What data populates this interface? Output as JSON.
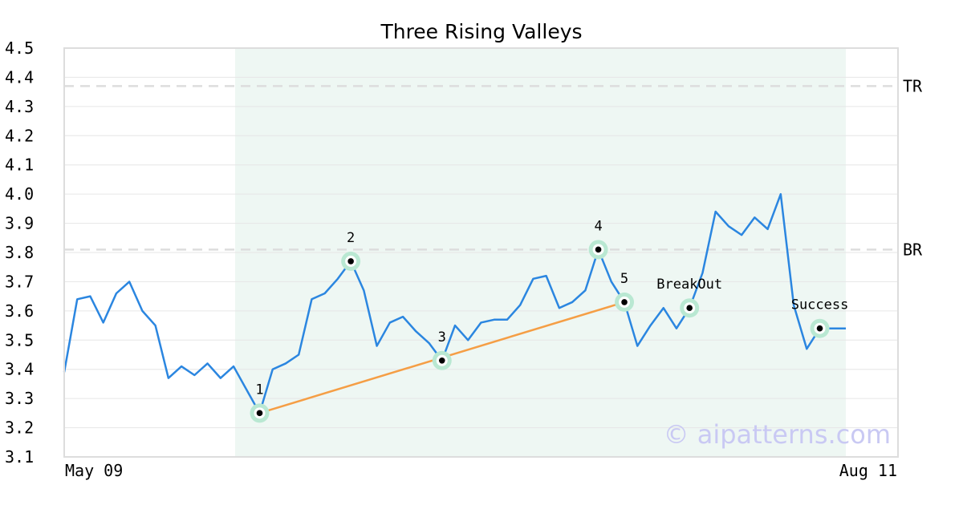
{
  "chart_data": {
    "type": "line",
    "title": "Three Rising Valleys",
    "xlabel": "",
    "ylabel": "",
    "ylim": [
      3.1,
      4.5
    ],
    "yticks": [
      "3.1",
      "3.2",
      "3.3",
      "3.4",
      "3.5",
      "3.6",
      "3.7",
      "3.8",
      "3.9",
      "4.0",
      "4.1",
      "4.2",
      "4.3",
      "4.4",
      "4.5"
    ],
    "x_labels": {
      "start": "May 09",
      "end": "Aug 11"
    },
    "grid": true,
    "legend": "none",
    "series": [
      {
        "values": [
          3.39,
          3.64,
          3.65,
          3.56,
          3.66,
          3.7,
          3.6,
          3.55,
          3.37,
          3.41,
          3.38,
          3.42,
          3.37,
          3.41,
          3.33,
          3.25,
          3.4,
          3.42,
          3.45,
          3.64,
          3.66,
          3.71,
          3.77,
          3.67,
          3.48,
          3.56,
          3.58,
          3.53,
          3.49,
          3.43,
          3.55,
          3.5,
          3.56,
          3.57,
          3.57,
          3.62,
          3.71,
          3.72,
          3.61,
          3.63,
          3.67,
          3.81,
          3.7,
          3.63,
          3.48,
          3.55,
          3.61,
          3.54,
          3.61,
          3.73,
          3.94,
          3.89,
          3.86,
          3.92,
          3.88,
          4.0,
          3.62,
          3.47,
          3.54,
          3.54,
          3.54
        ]
      }
    ],
    "pattern_region": {
      "start_index": 13,
      "end_index": 60
    },
    "reference_lines": [
      {
        "label": "TR",
        "value": 4.37
      },
      {
        "label": "BR",
        "value": 3.81
      }
    ],
    "pattern_points": [
      {
        "label": "1",
        "index": 15,
        "value": 3.25
      },
      {
        "label": "2",
        "index": 22,
        "value": 3.77
      },
      {
        "label": "3",
        "index": 29,
        "value": 3.43
      },
      {
        "label": "4",
        "index": 41,
        "value": 3.81
      },
      {
        "label": "5",
        "index": 43,
        "value": 3.63
      },
      {
        "label": "BreakOut",
        "index": 48,
        "value": 3.61
      },
      {
        "label": "Success",
        "index": 58,
        "value": 3.54
      }
    ],
    "trend_line": {
      "from_point": "1",
      "to_point": "5"
    },
    "colors": {
      "line": "#2b86e0",
      "trend": "#f59e45",
      "region": "#eef7f3",
      "marker_halo": "#b9e8d2",
      "reference": "#dddddd"
    },
    "watermark": "© aipatterns.com"
  }
}
